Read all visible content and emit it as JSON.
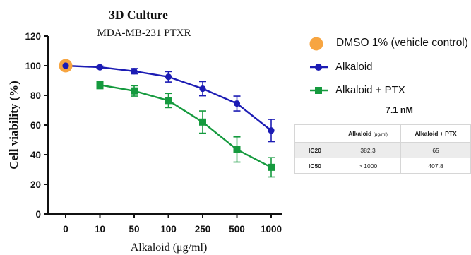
{
  "chart_data": {
    "type": "line",
    "title": "3D Culture",
    "subtitle": "MDA-MB-231 PTXR",
    "xlabel": "Alkaloid (μg/ml)",
    "ylabel": "Cell viability (%)",
    "categories": [
      "0",
      "10",
      "50",
      "100",
      "250",
      "500",
      "1000"
    ],
    "ylim": [
      0,
      120
    ],
    "yticks": [
      0,
      20,
      40,
      60,
      80,
      100,
      120
    ],
    "grid": false,
    "legend_position": "right",
    "series": [
      {
        "name": "DMSO 1% (vehicle control)",
        "color": "#f7a541",
        "marker": "circle-large",
        "points": [
          {
            "category": "0",
            "value": 100
          }
        ]
      },
      {
        "name": "Alkaloid",
        "color": "#1c1cb4",
        "marker": "circle",
        "points": [
          {
            "category": "0",
            "value": 100,
            "error": 0
          },
          {
            "category": "10",
            "value": 99,
            "error": 0.8
          },
          {
            "category": "50",
            "value": 96.3,
            "error": 1.8
          },
          {
            "category": "100",
            "value": 92.5,
            "error": 3.5
          },
          {
            "category": "250",
            "value": 84.5,
            "error": 4.8
          },
          {
            "category": "500",
            "value": 74.5,
            "error": 5.0
          },
          {
            "category": "1000",
            "value": 56.3,
            "error": 7.5
          }
        ]
      },
      {
        "name": "Alkaloid + PTX",
        "color": "#159a3e",
        "marker": "square",
        "points": [
          {
            "category": "10",
            "value": 87,
            "error": 2.5
          },
          {
            "category": "50",
            "value": 83,
            "error": 3.5
          },
          {
            "category": "100",
            "value": 76.5,
            "error": 4.8
          },
          {
            "category": "250",
            "value": 62,
            "error": 7.5
          },
          {
            "category": "500",
            "value": 43.5,
            "error": 8.5
          },
          {
            "category": "1000",
            "value": 31.5,
            "error": 6.5
          }
        ]
      }
    ],
    "annotation": "7.1 nM",
    "table": {
      "type": "table",
      "columns": [
        "",
        "Alkaloid",
        "Alkaloid + PTX"
      ],
      "column_units": [
        "",
        "(μg/ml)",
        ""
      ],
      "rows": [
        [
          "IC20",
          "382.3",
          "65"
        ],
        [
          "IC50",
          "> 1000",
          "407.8"
        ]
      ]
    }
  }
}
